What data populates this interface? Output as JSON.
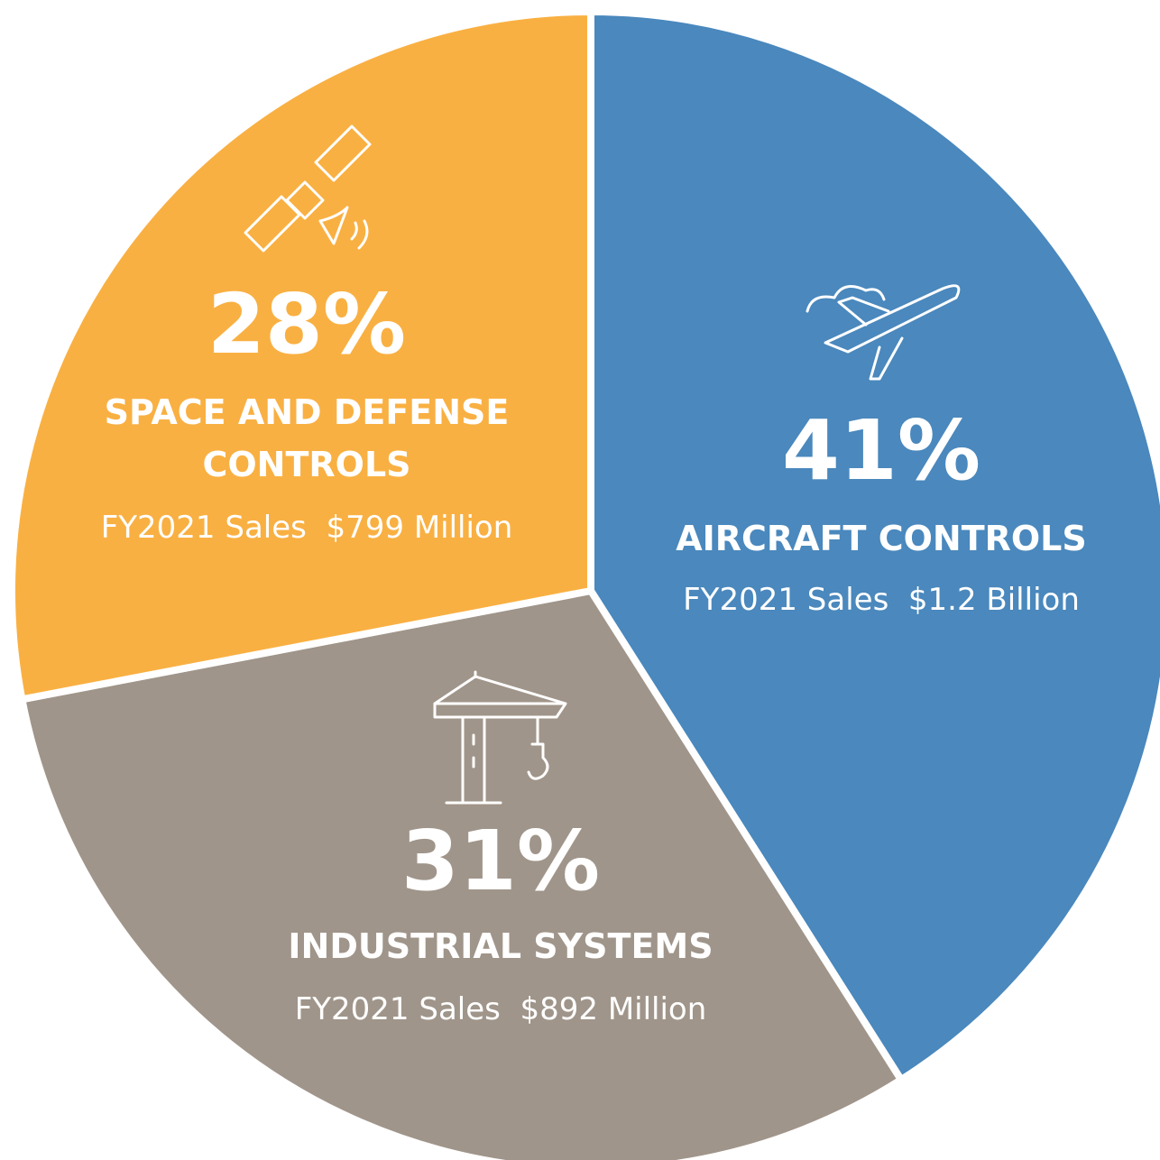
{
  "chart_data": {
    "type": "pie",
    "categories": [
      "AIRCRAFT CONTROLS",
      "INDUSTRIAL SYSTEMS",
      "SPACE AND DEFENSE CONTROLS"
    ],
    "values": [
      41,
      31,
      28
    ],
    "value_labels": [
      "41%",
      "31%",
      "28%"
    ],
    "sales": [
      "FY2021 Sales  $1.2 Billion",
      "FY2021 Sales  $892 Million",
      "FY2021 Sales  $799 Million"
    ],
    "colors": [
      "#4a88bd",
      "#a0958a",
      "#f9b042"
    ]
  }
}
